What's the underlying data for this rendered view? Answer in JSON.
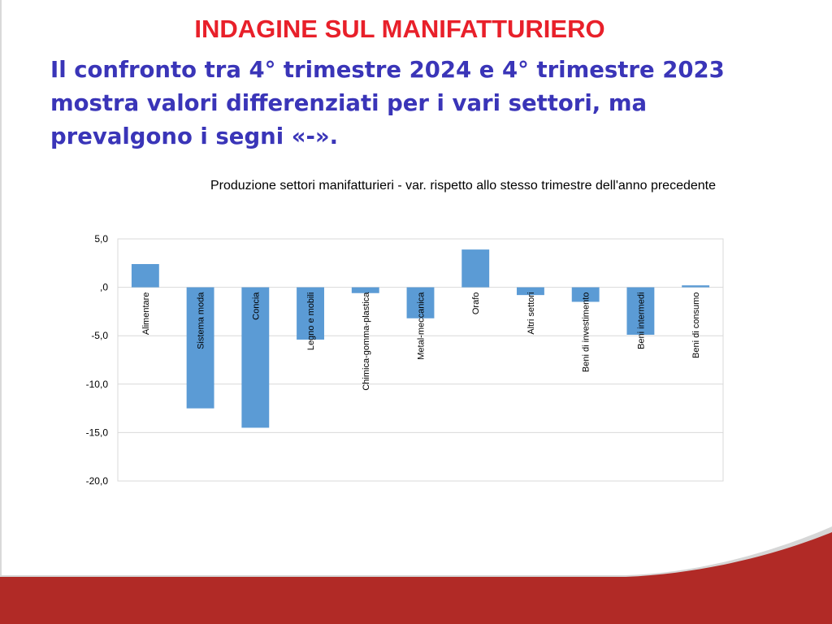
{
  "slide": {
    "title": "INDAGINE SUL MANIFATTURIERO",
    "subtitle": "Il confronto tra 4° trimestre 2024 e 4° trimestre 2023 mostra valori differenziati per i vari settori, ma prevalgono i segni «-»."
  },
  "colors": {
    "title": "#e8202a",
    "subtitle": "#3a35b8",
    "bar": "#5b9bd5",
    "footer": "#b12a26"
  },
  "chart_data": {
    "type": "bar",
    "title": "Produzione settori manifatturieri - var. rispetto allo stesso trimestre dell'anno precedente",
    "xlabel": "",
    "ylabel": "",
    "categories": [
      "Alimentare",
      "Sistema moda",
      "Concia",
      "Legno e mobili",
      "Chimica-gomma-plastica",
      "Metal-meccanica",
      "Orafo",
      "Altri settori",
      "Beni di investimento",
      "Beni intermedi",
      "Beni di consumo"
    ],
    "values": [
      2.4,
      -12.5,
      -14.5,
      -5.4,
      -0.6,
      -3.2,
      3.9,
      -0.8,
      -1.5,
      -4.9,
      0.2
    ],
    "ylim": [
      -20,
      5
    ],
    "yticks": [
      5,
      0,
      -5,
      -10,
      -15,
      -20
    ],
    "ytick_labels": [
      "5,0",
      ",0",
      "-5,0",
      "-10,0",
      "-15,0",
      "-20,0"
    ],
    "grid": true,
    "legend": "none"
  }
}
